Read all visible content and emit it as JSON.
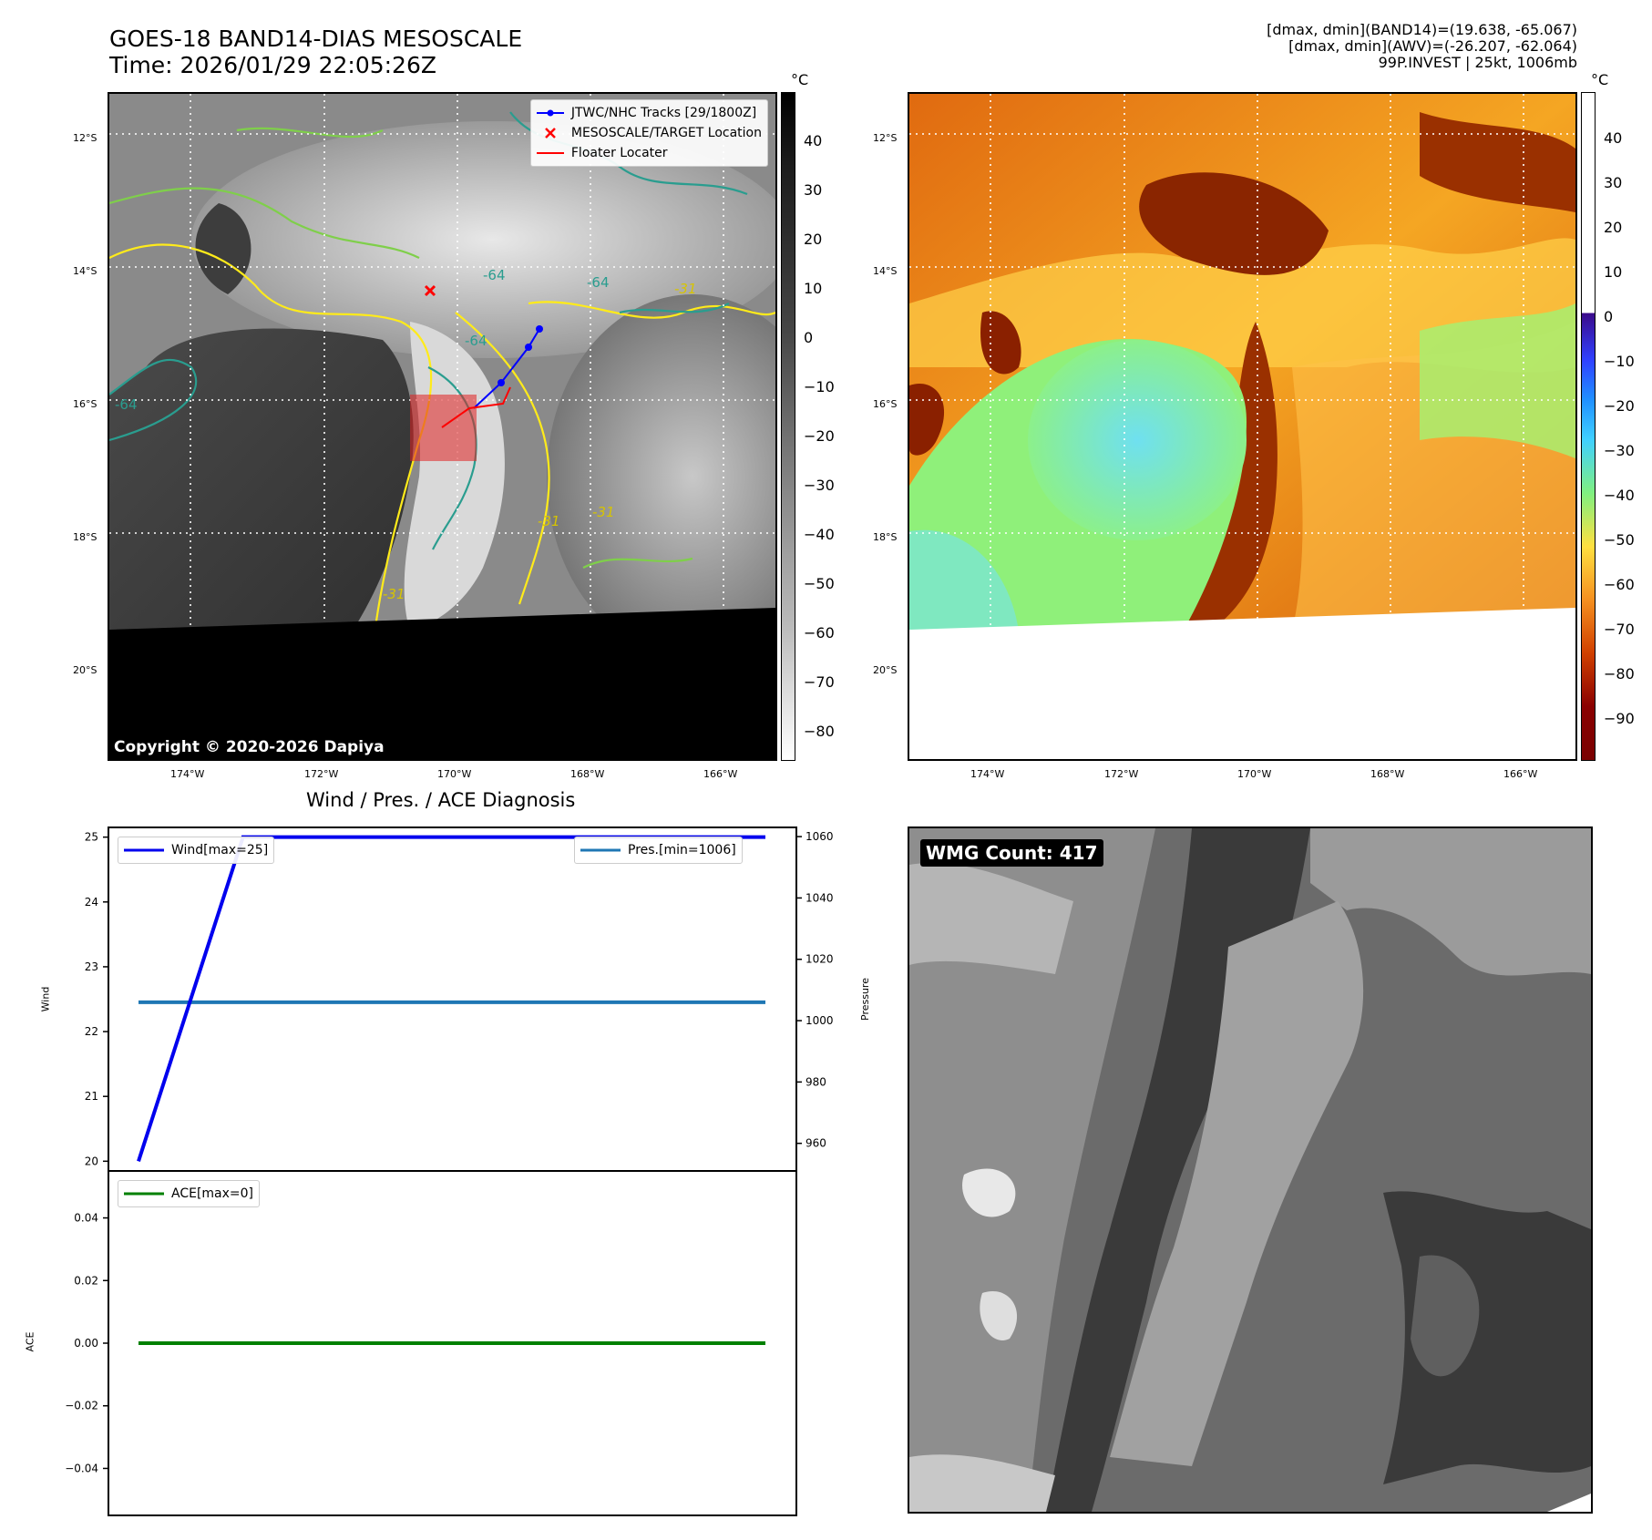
{
  "header": {
    "title_line1": "GOES-18 BAND14-DIAS MESOSCALE",
    "title_line2": "Time: 2026/01/29 22:05:26Z",
    "info_line1": "[dmax, dmin](BAND14)=(19.638, -65.067)",
    "info_line2": "[dmax, dmin](AWV)=(-26.207, -62.064)",
    "info_line3": "99P.INVEST | 25kt, 1006mb"
  },
  "map": {
    "lat_labels": [
      "12°S",
      "14°S",
      "16°S",
      "18°S",
      "20°S"
    ],
    "lon_labels": [
      "174°W",
      "172°W",
      "170°W",
      "168°W",
      "166°W"
    ],
    "contour_labels": [
      "-64",
      "-64",
      "-64",
      "-64",
      "-31",
      "-31",
      "-31",
      "-31"
    ],
    "copyright": "Copyright © 2020-2026 Dapiya",
    "legend": {
      "track": "JTWC/NHC Tracks [29/1800Z]",
      "target": "MESOSCALE/TARGET Location",
      "floater": "Floater Locater"
    },
    "colors": {
      "track": "#0000ff",
      "target": "#ff0000",
      "floater": "#ff0000",
      "contour_cold": "#ffeb1a",
      "contour_mid": "#7fcf4a",
      "contour_warm": "#2a9d8f"
    }
  },
  "colorbar_left": {
    "unit": "°C",
    "ticks": [
      "40",
      "30",
      "20",
      "10",
      "0",
      "−10",
      "−20",
      "−30",
      "−40",
      "−50",
      "−60",
      "−70",
      "−80"
    ]
  },
  "colorbar_right": {
    "unit": "°C",
    "ticks": [
      "40",
      "30",
      "20",
      "10",
      "0",
      "−10",
      "−20",
      "−30",
      "−40",
      "−50",
      "−60",
      "−70",
      "−80",
      "−90"
    ]
  },
  "diag": {
    "title": "Wind / Pres. / ACE Diagnosis",
    "wind_legend": "Wind[max=25]",
    "pres_legend": "Pres.[min=1006]",
    "ace_legend": "ACE[max=0]",
    "wind_ylabel": "Wind",
    "pres_ylabel": "Pressure",
    "ace_ylabel": "ACE",
    "wind_ticks": [
      "25",
      "24",
      "23",
      "22",
      "21",
      "20"
    ],
    "pres_ticks": [
      "1060",
      "1040",
      "1020",
      "1000",
      "980",
      "960"
    ],
    "ace_ticks": [
      "0.04",
      "0.02",
      "0.00",
      "−0.02",
      "−0.04"
    ],
    "colors": {
      "wind": "#0000ee",
      "pres": "#1f77b4",
      "ace": "#008000"
    }
  },
  "wmg": {
    "label": "WMG Count: 417"
  },
  "chart_data": [
    {
      "type": "line",
      "title": "Wind / Pres. / ACE Diagnosis",
      "series": [
        {
          "name": "Wind[max=25]",
          "axis": "Wind",
          "x": [
            0,
            1,
            2,
            3,
            4,
            5,
            6
          ],
          "values": [
            20,
            25,
            25,
            25,
            25,
            25,
            25
          ]
        },
        {
          "name": "Pres.[min=1006]",
          "axis": "Pressure",
          "x": [
            0,
            1,
            2,
            3,
            4,
            5,
            6
          ],
          "values": [
            1006,
            1006,
            1006,
            1006,
            1006,
            1006,
            1006
          ]
        }
      ],
      "ylim_wind": [
        19.85,
        25.15
      ],
      "ylim_pressure": [
        951,
        1063
      ],
      "grid": false
    },
    {
      "type": "line",
      "series": [
        {
          "name": "ACE[max=0]",
          "x": [
            0,
            1,
            2,
            3,
            4,
            5,
            6
          ],
          "values": [
            0,
            0,
            0,
            0,
            0,
            0,
            0
          ]
        }
      ],
      "ylim": [
        -0.055,
        0.055
      ],
      "grid": false
    }
  ]
}
